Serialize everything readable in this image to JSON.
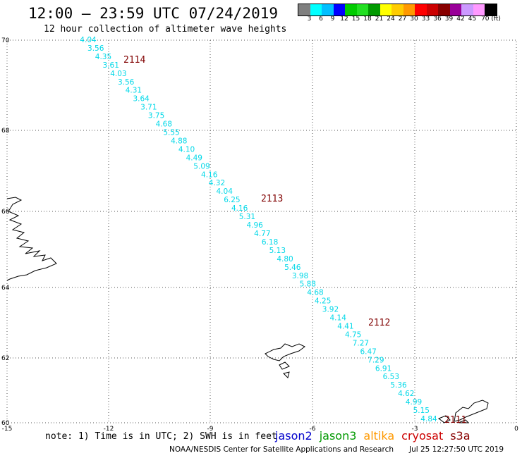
{
  "header": {
    "title": "12:00 – 23:59 UTC 07/24/2019",
    "subtitle": "12 hour collection of altimeter wave heights"
  },
  "colorbar": {
    "colors": [
      "#7f7f7f",
      "#00ffff",
      "#00bfff",
      "#0000ff",
      "#00cc00",
      "#22e022",
      "#009900",
      "#ffff00",
      "#ffcc00",
      "#ff9900",
      "#ff0000",
      "#cc0000",
      "#880000",
      "#990099",
      "#cc99ff",
      "#ff99ff",
      "#000000"
    ],
    "labels": [
      "3",
      "6",
      "9",
      "12",
      "15",
      "18",
      "21",
      "24",
      "27",
      "30",
      "33",
      "36",
      "39",
      "42",
      "45",
      "70 (ft)"
    ]
  },
  "map": {
    "lon_ticks": [
      "-15",
      "-12",
      "-9",
      "-6",
      "-3",
      "0"
    ],
    "lat_ticks": [
      "70",
      "68",
      "66",
      "64",
      "62",
      "60"
    ],
    "swh_values": [
      "4.04",
      "3.56",
      "4.35",
      "3.61",
      "4.03",
      "3.56",
      "4.31",
      "3.64",
      "3.71",
      "3.75",
      "4.68",
      "5.55",
      "4.88",
      "4.10",
      "4.49",
      "5.09",
      "4.16",
      "4.32",
      "4.04",
      "6.25",
      "4.16",
      "5.31",
      "4.96",
      "4.77",
      "6.18",
      "5.13",
      "4.80",
      "5.46",
      "3.98",
      "5.88",
      "4.68",
      "4.25",
      "3.92",
      "4.14",
      "4.41",
      "4.75",
      "7.27",
      "6.47",
      "7.29",
      "6.91",
      "6.53",
      "5.36",
      "4.62",
      "4.99",
      "5.15",
      "4.84"
    ],
    "revs": [
      "2114",
      "2113",
      "2112",
      "2111"
    ],
    "colors": {
      "swh": "#00d8e8",
      "rev": "#800000",
      "grid": "#555555"
    }
  },
  "note": "note: 1) Time is in UTC; 2) SWH is in feet",
  "satellites": [
    {
      "name": "jason2",
      "color": "#0000cc"
    },
    {
      "name": "jason3",
      "color": "#009900"
    },
    {
      "name": "altika",
      "color": "#ff9900"
    },
    {
      "name": "cryosat",
      "color": "#cc0000"
    },
    {
      "name": "s3a",
      "color": "#880000"
    }
  ],
  "footer": {
    "credit": "NOAA/NESDIS Center for Satellite Applications and Research",
    "timestamp": "Jul 25 12:27:50 UTC 2019"
  }
}
